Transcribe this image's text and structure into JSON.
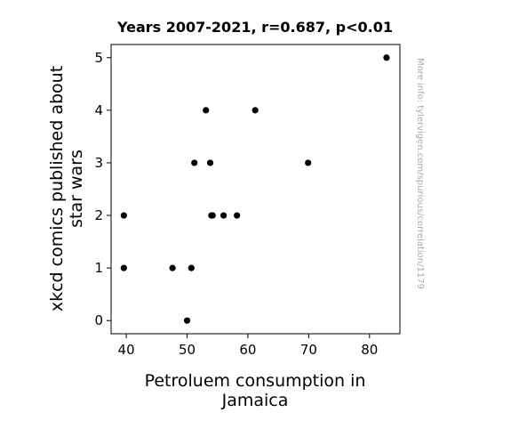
{
  "chart_data": {
    "type": "scatter",
    "title": "Years 2007-2021, r=0.687, p<0.01",
    "xlabel_lines": [
      "Petroluem consumption in",
      "Jamaica"
    ],
    "ylabel_lines": [
      "xkcd comics published about",
      "star wars"
    ],
    "xlim": [
      37.5,
      85
    ],
    "ylim": [
      -0.25,
      5.25
    ],
    "xticks": [
      40,
      50,
      60,
      70,
      80
    ],
    "yticks": [
      0,
      1,
      2,
      3,
      4,
      5
    ],
    "grid": false,
    "marker_color": "#000000",
    "points": [
      {
        "x": 39.6,
        "y": 2
      },
      {
        "x": 39.6,
        "y": 1
      },
      {
        "x": 47.6,
        "y": 1
      },
      {
        "x": 50.0,
        "y": 0
      },
      {
        "x": 50.7,
        "y": 1
      },
      {
        "x": 51.2,
        "y": 3
      },
      {
        "x": 53.1,
        "y": 4
      },
      {
        "x": 53.8,
        "y": 3
      },
      {
        "x": 54.0,
        "y": 2
      },
      {
        "x": 54.2,
        "y": 2
      },
      {
        "x": 56.0,
        "y": 2
      },
      {
        "x": 58.2,
        "y": 2
      },
      {
        "x": 61.2,
        "y": 4
      },
      {
        "x": 69.9,
        "y": 3
      },
      {
        "x": 82.8,
        "y": 5
      }
    ]
  },
  "watermark": "More info: tylervigen.com/spurious/correlation/1179"
}
